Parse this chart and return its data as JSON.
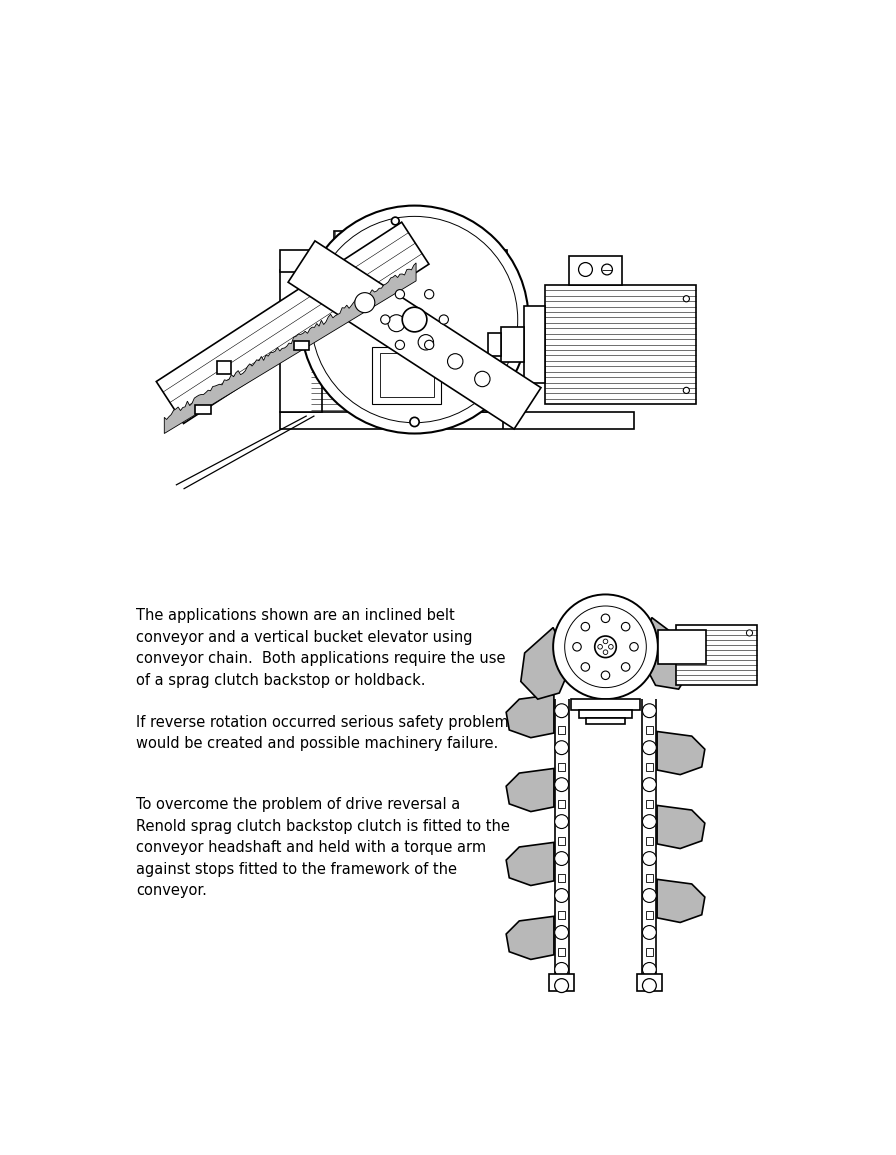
{
  "background_color": "#ffffff",
  "text1": "The applications shown are an inclined belt\nconveyor and a vertical bucket elevator using\nconveyor chain.  Both applications require the use\nof a sprag clutch backstop or holdback.",
  "text2": "If reverse rotation occurred serious safety problems\nwould be created and possible machinery failure.",
  "text3": "To overcome the problem of drive reversal a\nRenold sprag clutch backstop clutch is fitted to the\nconveyor headshaft and held with a torque arm\nagainst stops fitted to the framework of the\nconveyor.",
  "font_size": 10.5,
  "line_color": "#000000",
  "gray_fill": "#b8b8b8",
  "lw_main": 1.2,
  "lw_thin": 0.5
}
